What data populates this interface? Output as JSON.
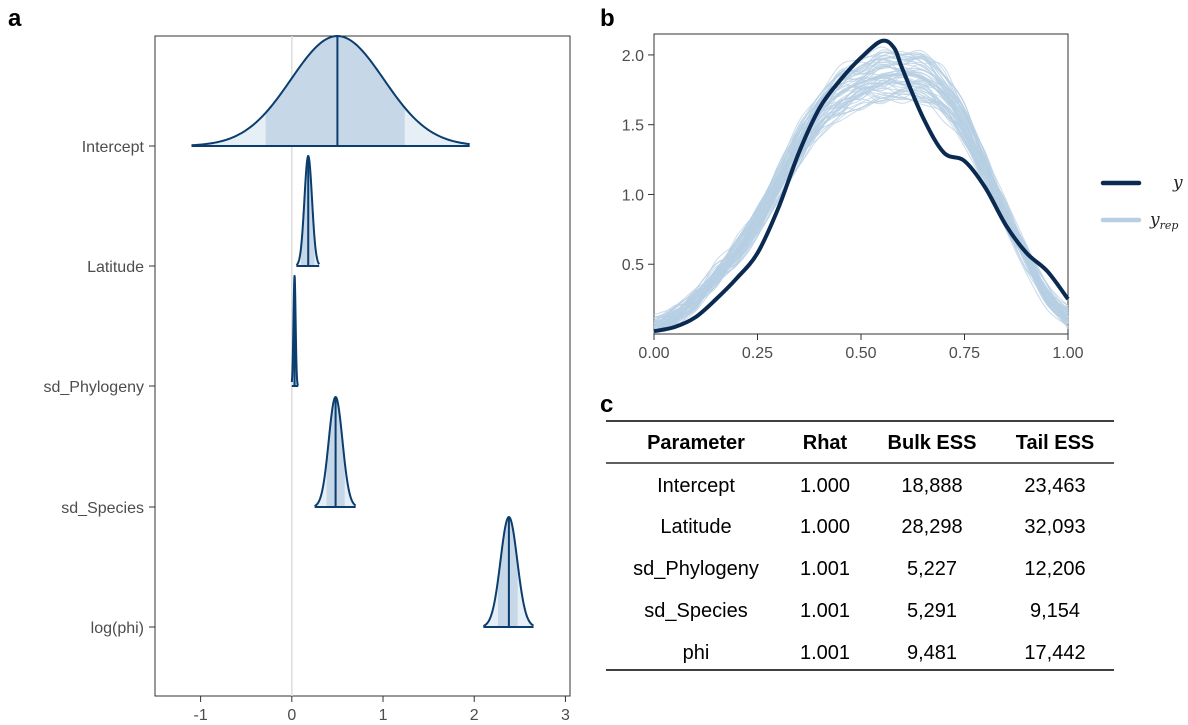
{
  "panels": {
    "a": "a",
    "b": "b",
    "c": "c"
  },
  "chart_data": [
    {
      "panel": "a",
      "type": "area",
      "subtype": "posterior density ridges",
      "xlim": [
        -1.5,
        3.05
      ],
      "x_ticks": [
        -1,
        0,
        1,
        2,
        3
      ],
      "x_tick_labels": [
        "-1",
        "0",
        "1",
        "2",
        "3"
      ],
      "reference_line_x": 0,
      "parameters": [
        {
          "name": "Intercept",
          "median": 0.5,
          "inner": [
            -0.3,
            1.25
          ],
          "range": [
            -1.1,
            1.95
          ]
        },
        {
          "name": "Latitude",
          "median": 0.18,
          "inner": [
            0.1,
            0.25
          ],
          "range": [
            0.05,
            0.3
          ]
        },
        {
          "name": "sd_Phylogeny",
          "median": 0.03,
          "inner": [
            0.01,
            0.05
          ],
          "range": [
            0.0,
            0.07
          ]
        },
        {
          "name": "sd_Species",
          "median": 0.48,
          "inner": [
            0.38,
            0.58
          ],
          "range": [
            0.25,
            0.7
          ]
        },
        {
          "name": "log(phi)",
          "median": 2.38,
          "inner": [
            2.26,
            2.48
          ],
          "range": [
            2.1,
            2.65
          ]
        }
      ],
      "fill_color": "#c6d8e8",
      "line_color": "#0b3d6e",
      "grid": false
    },
    {
      "panel": "b",
      "type": "line",
      "subtype": "posterior predictive check (density overlay)",
      "xlim": [
        0,
        1
      ],
      "ylim": [
        0,
        2.15
      ],
      "x_ticks": [
        0,
        0.25,
        0.5,
        0.75,
        1.0
      ],
      "x_tick_labels": [
        "0.00",
        "0.25",
        "0.50",
        "0.75",
        "1.00"
      ],
      "y_ticks": [
        0.5,
        1.0,
        1.5,
        2.0
      ],
      "y_tick_labels": [
        "0.5",
        "1.0",
        "1.5",
        "2.0"
      ],
      "series": [
        {
          "name": "y",
          "color": "#0b2a52",
          "x": [
            0,
            0.05,
            0.1,
            0.15,
            0.2,
            0.25,
            0.3,
            0.35,
            0.4,
            0.45,
            0.5,
            0.55,
            0.58,
            0.6,
            0.65,
            0.7,
            0.75,
            0.8,
            0.85,
            0.9,
            0.95,
            1.0
          ],
          "y": [
            0.02,
            0.05,
            0.12,
            0.25,
            0.4,
            0.58,
            0.9,
            1.3,
            1.62,
            1.82,
            1.98,
            2.1,
            2.05,
            1.9,
            1.55,
            1.3,
            1.24,
            1.05,
            0.78,
            0.58,
            0.45,
            0.25
          ]
        },
        {
          "name": "y_rep",
          "color": "#b7cfe3",
          "x": [
            0,
            0.05,
            0.1,
            0.15,
            0.2,
            0.25,
            0.3,
            0.35,
            0.4,
            0.45,
            0.5,
            0.55,
            0.6,
            0.65,
            0.7,
            0.75,
            0.8,
            0.85,
            0.9,
            0.95,
            1.0
          ],
          "y": [
            0.05,
            0.12,
            0.25,
            0.42,
            0.6,
            0.82,
            1.08,
            1.35,
            1.58,
            1.72,
            1.8,
            1.85,
            1.86,
            1.84,
            1.72,
            1.5,
            1.18,
            0.85,
            0.55,
            0.28,
            0.12
          ]
        }
      ],
      "legend": {
        "position": "right",
        "entries": [
          "y",
          "rep"
        ]
      },
      "grid": false
    }
  ],
  "table": {
    "headers": [
      "Parameter",
      "Rhat",
      "Bulk ESS",
      "Tail ESS"
    ],
    "rows": [
      [
        "Intercept",
        "1.000",
        "18,888",
        "23,463"
      ],
      [
        "Latitude",
        "1.000",
        "28,298",
        "32,093"
      ],
      [
        "sd_Phylogeny",
        "1.001",
        "5,227",
        "12,206"
      ],
      [
        "sd_Species",
        "1.001",
        "5,291",
        "9,154"
      ],
      [
        "phi",
        "1.001",
        "9,481",
        "17,442"
      ]
    ]
  }
}
